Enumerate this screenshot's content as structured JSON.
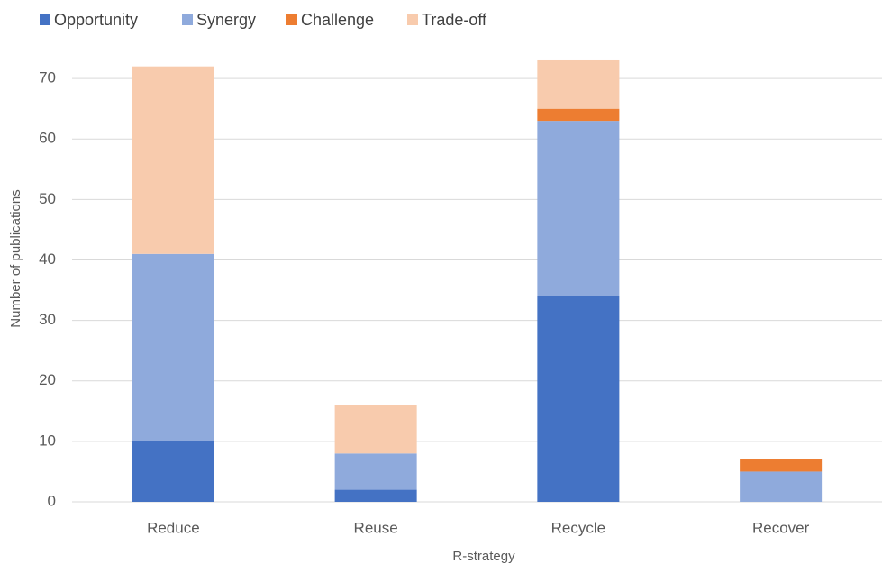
{
  "chart_data": {
    "type": "stacked_bar",
    "x_label": "R-strategy",
    "y_label": "Number of publications",
    "categories": [
      "Reduce",
      "Reuse",
      "Recycle",
      "Recover"
    ],
    "series": [
      {
        "name": "Opportunity",
        "color": "#4472c4",
        "values": [
          10,
          2,
          34,
          0
        ]
      },
      {
        "name": "Synergy",
        "color": "#8faadc",
        "values": [
          31,
          6,
          29,
          5
        ]
      },
      {
        "name": "Challenge",
        "color": "#ed7d31",
        "values": [
          0,
          0,
          2,
          2
        ]
      },
      {
        "name": "Trade-off",
        "color": "#f8cbad",
        "values": [
          31,
          8,
          8,
          0
        ]
      }
    ],
    "ylim": [
      0,
      80
    ],
    "yticks": [
      0,
      10,
      20,
      30,
      40,
      50,
      60,
      70
    ],
    "grid": true,
    "legend": "top"
  }
}
